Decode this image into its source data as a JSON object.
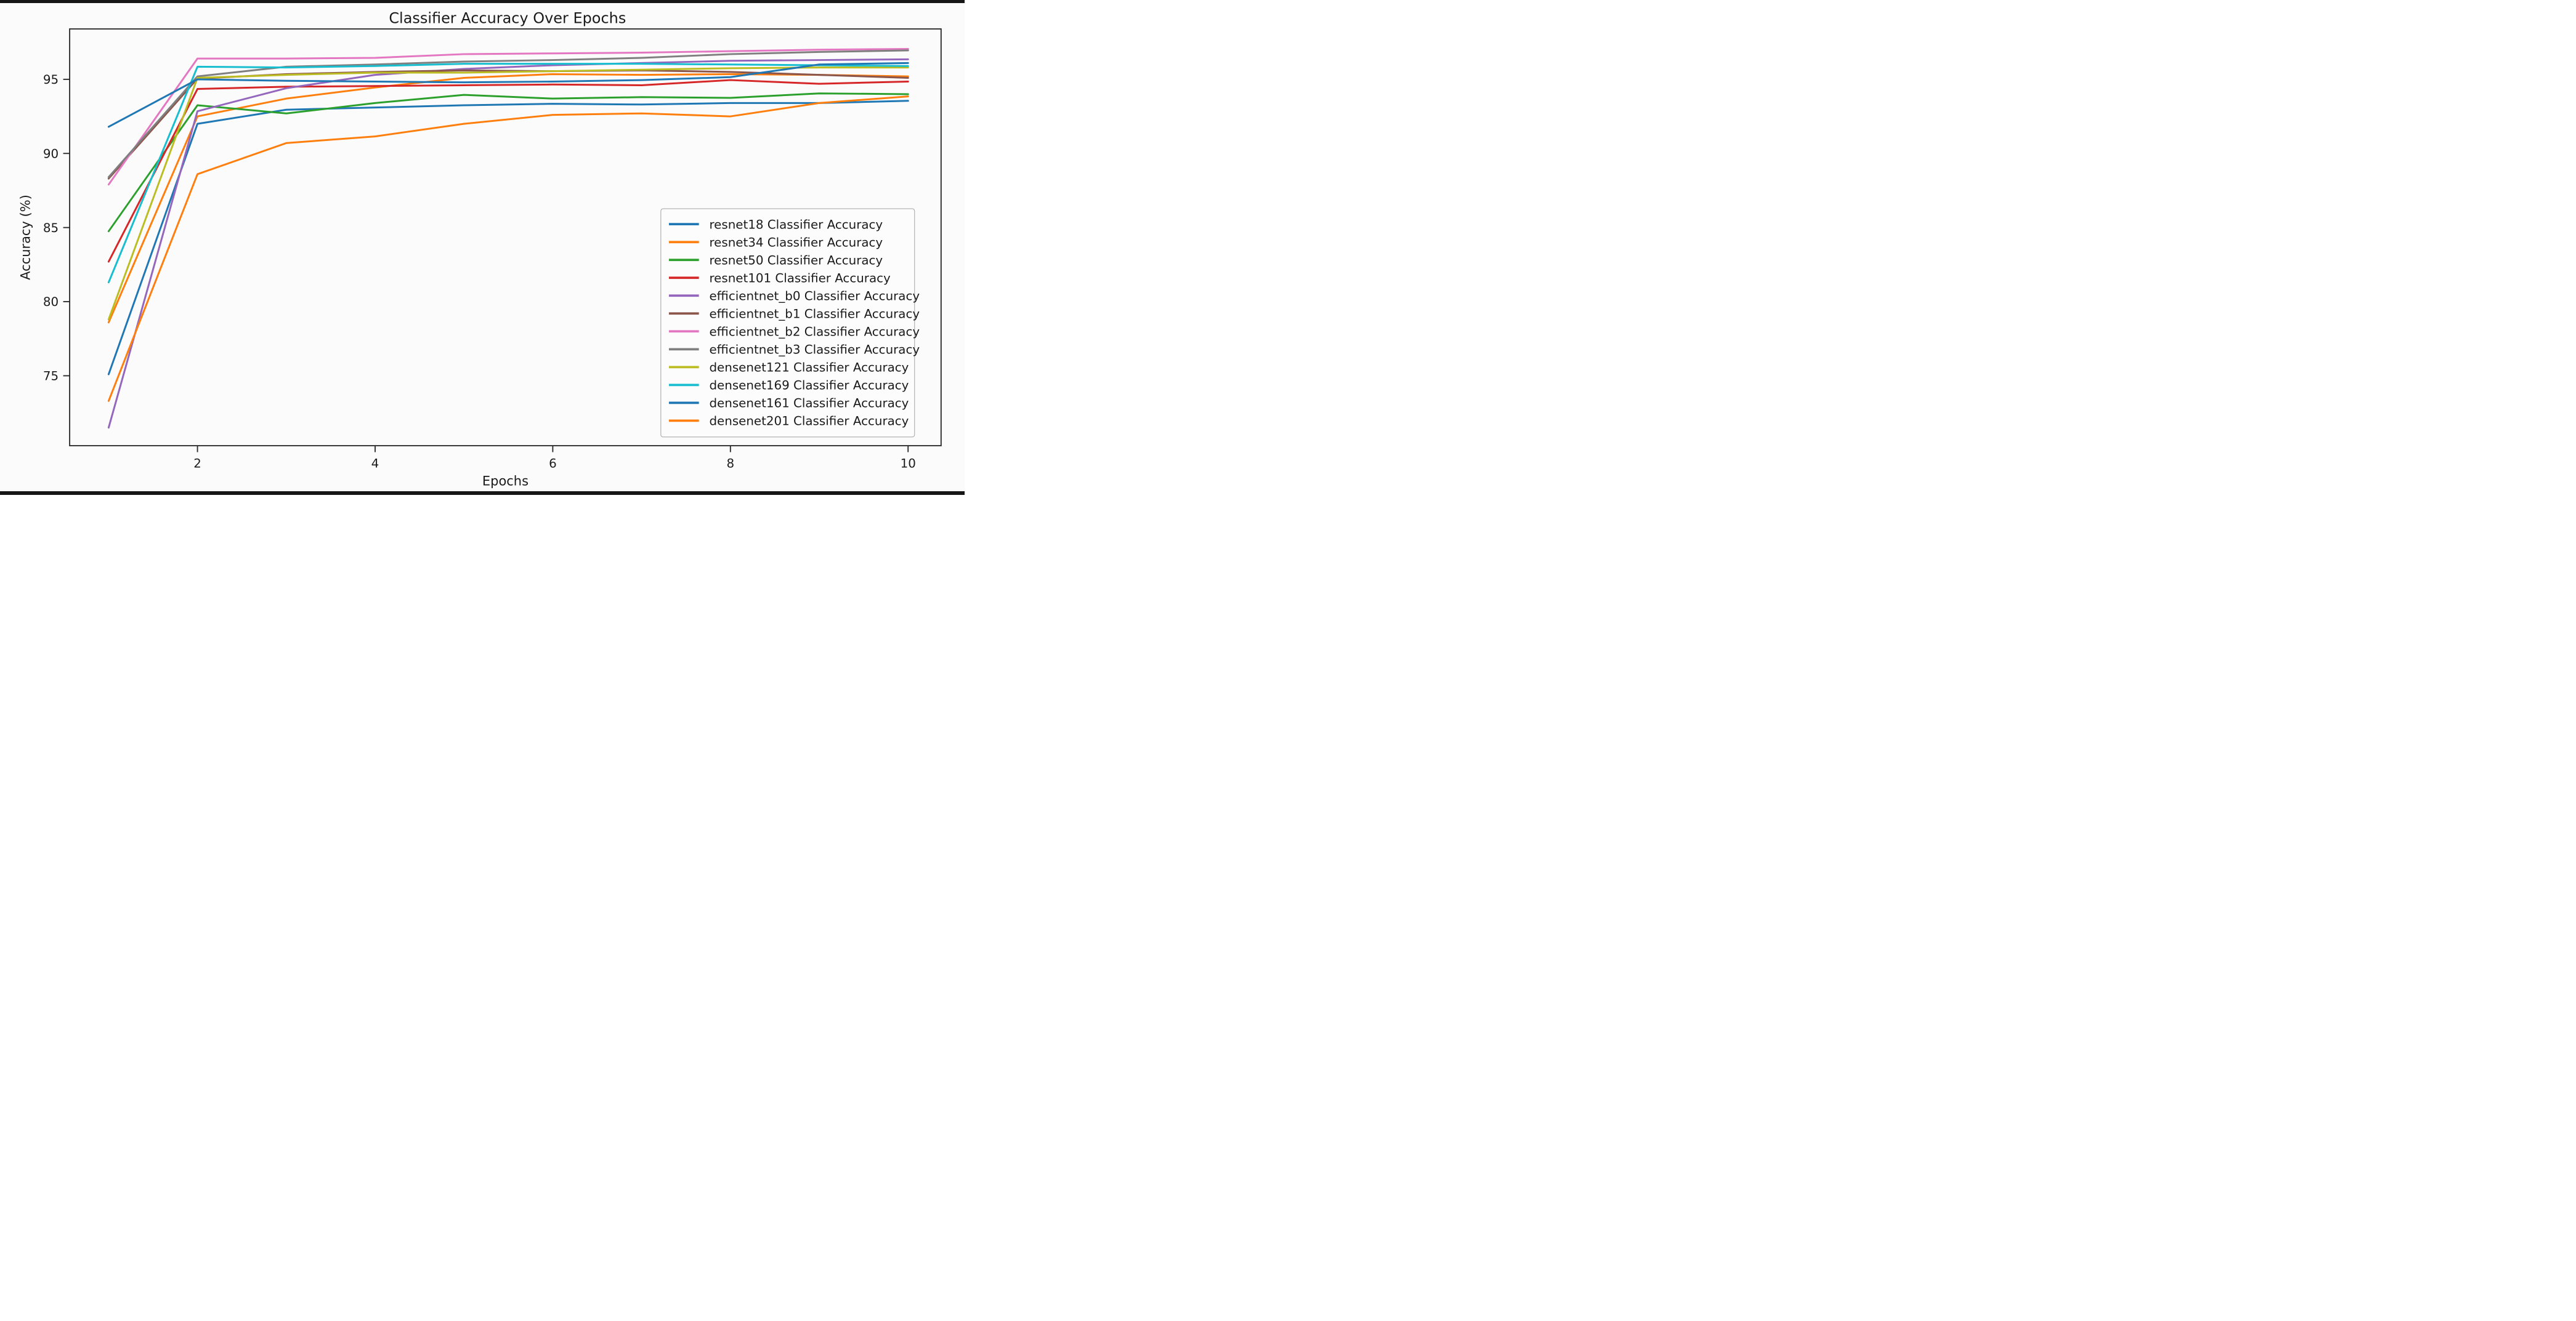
{
  "chart_data": {
    "type": "line",
    "title": "Classifier Accuracy Over Epochs",
    "xlabel": "Epochs",
    "ylabel": "Accuracy (%)",
    "x": [
      1,
      2,
      3,
      4,
      5,
      6,
      7,
      8,
      9,
      10
    ],
    "x_tick_labels": [
      "2",
      "4",
      "6",
      "8",
      "10"
    ],
    "x_ticks": [
      2,
      4,
      6,
      8,
      10
    ],
    "y_tick_labels": [
      "75",
      "80",
      "85",
      "90",
      "95"
    ],
    "y_ticks": [
      75,
      80,
      85,
      90,
      95
    ],
    "xlim": [
      0.56,
      10.37
    ],
    "ylim": [
      70.28,
      98.4
    ],
    "grid": false,
    "legend_position": "center right",
    "series": [
      {
        "name": "resnet18",
        "legend_label": "resnet18 Classifier Accuracy",
        "color": "#1f77b4",
        "values": [
          75.1,
          92.0,
          92.95,
          93.1,
          93.25,
          93.35,
          93.3,
          93.4,
          93.4,
          93.55
        ]
      },
      {
        "name": "resnet34",
        "legend_label": "resnet34 Classifier Accuracy",
        "color": "#ff7f0e",
        "values": [
          78.6,
          92.5,
          93.7,
          94.45,
          95.1,
          95.35,
          95.3,
          95.35,
          95.3,
          95.2
        ]
      },
      {
        "name": "resnet50",
        "legend_label": "resnet50 Classifier Accuracy",
        "color": "#2ca02c",
        "values": [
          84.75,
          93.25,
          92.7,
          93.4,
          93.95,
          93.7,
          93.8,
          93.75,
          94.05,
          94.0
        ]
      },
      {
        "name": "resnet101",
        "legend_label": "resnet101 Classifier Accuracy",
        "color": "#d62728",
        "values": [
          82.7,
          94.35,
          94.5,
          94.55,
          94.6,
          94.65,
          94.6,
          94.95,
          94.7,
          94.85
        ]
      },
      {
        "name": "efficientnet_b0",
        "legend_label": "efficientnet_b0 Classifier Accuracy",
        "color": "#9467bd",
        "values": [
          71.5,
          92.85,
          94.4,
          95.3,
          95.7,
          95.95,
          96.1,
          96.25,
          96.3,
          96.35
        ]
      },
      {
        "name": "efficientnet_b1",
        "legend_label": "efficientnet_b1 Classifier Accuracy",
        "color": "#8c564b",
        "values": [
          88.3,
          95.05,
          95.35,
          95.5,
          95.6,
          95.55,
          95.6,
          95.5,
          95.3,
          95.1
        ]
      },
      {
        "name": "efficientnet_b2",
        "legend_label": "efficientnet_b2 Classifier Accuracy",
        "color": "#e377c2",
        "values": [
          87.9,
          96.4,
          96.4,
          96.45,
          96.7,
          96.75,
          96.8,
          96.9,
          97.0,
          97.05
        ]
      },
      {
        "name": "efficientnet_b3",
        "legend_label": "efficientnet_b3 Classifier Accuracy",
        "color": "#7f7f7f",
        "values": [
          88.4,
          95.2,
          95.85,
          96.0,
          96.2,
          96.3,
          96.45,
          96.7,
          96.85,
          96.95
        ]
      },
      {
        "name": "densenet121",
        "legend_label": "densenet121 Classifier Accuracy",
        "color": "#bcbd22",
        "values": [
          78.8,
          95.1,
          95.3,
          95.45,
          95.45,
          95.55,
          95.65,
          95.75,
          95.8,
          95.8
        ]
      },
      {
        "name": "densenet169",
        "legend_label": "densenet169 Classifier Accuracy",
        "color": "#17becf",
        "values": [
          81.3,
          95.85,
          95.8,
          95.9,
          96.05,
          96.05,
          96.05,
          96.0,
          95.95,
          95.9
        ]
      },
      {
        "name": "densenet161",
        "legend_label": "densenet161 Classifier Accuracy",
        "color": "#1f77b4",
        "values": [
          91.8,
          95.0,
          94.9,
          94.85,
          94.8,
          94.85,
          94.95,
          95.15,
          96.0,
          96.1
        ]
      },
      {
        "name": "densenet201",
        "legend_label": "densenet201 Classifier Accuracy",
        "color": "#ff7f0e",
        "values": [
          73.3,
          88.6,
          90.7,
          91.15,
          92.0,
          92.6,
          92.7,
          92.5,
          93.4,
          93.85
        ]
      }
    ]
  }
}
